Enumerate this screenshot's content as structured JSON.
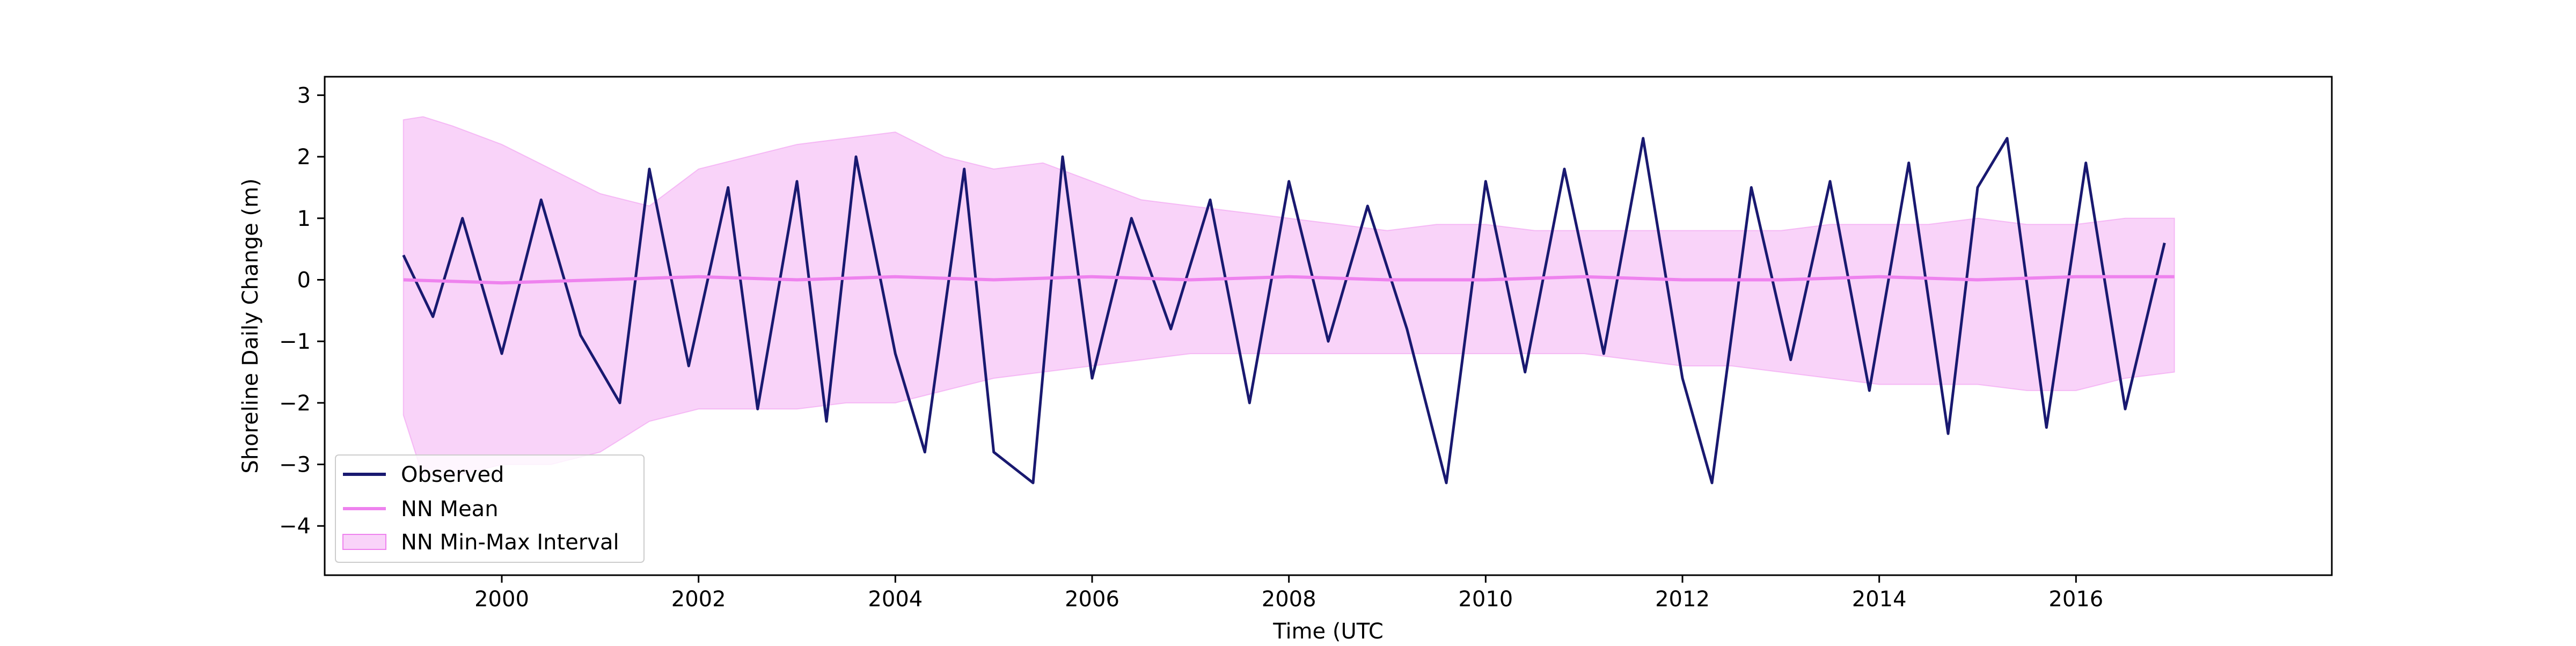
{
  "chart_data": {
    "type": "line",
    "xlabel": "Time (UTC",
    "ylabel": "Shoreline Daily Change (m)",
    "xlim": [
      1998.2,
      2018.6
    ],
    "ylim": [
      -4.8,
      3.3
    ],
    "x_ticks": [
      {
        "value": 2000,
        "label": "2000"
      },
      {
        "value": 2002,
        "label": "2002"
      },
      {
        "value": 2004,
        "label": "2004"
      },
      {
        "value": 2006,
        "label": "2006"
      },
      {
        "value": 2008,
        "label": "2008"
      },
      {
        "value": 2010,
        "label": "2010"
      },
      {
        "value": 2012,
        "label": "2012"
      },
      {
        "value": 2014,
        "label": "2014"
      },
      {
        "value": 2016,
        "label": "2016"
      }
    ],
    "y_ticks": [
      {
        "value": 3,
        "label": "3"
      },
      {
        "value": 2,
        "label": "2"
      },
      {
        "value": 1,
        "label": "1"
      },
      {
        "value": 0,
        "label": "0"
      },
      {
        "value": -1,
        "label": "−1"
      },
      {
        "value": -2,
        "label": "−2"
      },
      {
        "value": -3,
        "label": "−3"
      },
      {
        "value": -4,
        "label": "−4"
      }
    ],
    "grid": false,
    "legend": {
      "placement": "lower-left",
      "entries": [
        {
          "name": "Observed",
          "style": "line",
          "color": "#191970"
        },
        {
          "name": "NN Mean",
          "style": "line",
          "color": "#ee82ee"
        },
        {
          "name": "NN Min-Max Interval",
          "style": "patch",
          "color": "#ee82ee"
        }
      ]
    },
    "series": [
      {
        "name": "NN Min-Max Interval",
        "kind": "band",
        "color": "#ee82ee",
        "x": [
          1999.0,
          1999.2,
          1999.5,
          2000.0,
          2000.5,
          2001.0,
          2001.5,
          2002.0,
          2002.5,
          2003.0,
          2003.5,
          2004.0,
          2004.5,
          2005.0,
          2005.5,
          2006.0,
          2006.5,
          2007.0,
          2007.5,
          2008.0,
          2008.5,
          2009.0,
          2009.5,
          2010.0,
          2010.5,
          2011.0,
          2011.5,
          2012.0,
          2012.5,
          2013.0,
          2013.5,
          2014.0,
          2014.5,
          2015.0,
          2015.5,
          2016.0,
          2016.5,
          2017.0
        ],
        "upper": [
          2.6,
          2.65,
          2.5,
          2.2,
          1.8,
          1.4,
          1.2,
          1.8,
          2.0,
          2.2,
          2.3,
          2.4,
          2.0,
          1.8,
          1.9,
          1.6,
          1.3,
          1.2,
          1.1,
          1.0,
          0.9,
          0.8,
          0.9,
          0.9,
          0.8,
          0.8,
          0.8,
          0.8,
          0.8,
          0.8,
          0.9,
          0.9,
          0.9,
          1.0,
          0.9,
          0.9,
          1.0,
          1.0
        ],
        "lower": [
          -2.2,
          -3.2,
          -3.2,
          -3.0,
          -3.0,
          -2.8,
          -2.3,
          -2.1,
          -2.1,
          -2.1,
          -2.0,
          -2.0,
          -1.8,
          -1.6,
          -1.5,
          -1.4,
          -1.3,
          -1.2,
          -1.2,
          -1.2,
          -1.2,
          -1.2,
          -1.2,
          -1.2,
          -1.2,
          -1.2,
          -1.3,
          -1.4,
          -1.4,
          -1.5,
          -1.6,
          -1.7,
          -1.7,
          -1.7,
          -1.8,
          -1.8,
          -1.6,
          -1.5
        ]
      },
      {
        "name": "Observed",
        "kind": "line",
        "color": "#191970",
        "x": [
          1999.0,
          1999.3,
          1999.6,
          2000.0,
          2000.4,
          2000.8,
          2001.2,
          2001.5,
          2001.9,
          2002.3,
          2002.6,
          2003.0,
          2003.3,
          2003.6,
          2004.0,
          2004.3,
          2004.7,
          2005.0,
          2005.4,
          2005.7,
          2006.0,
          2006.4,
          2006.8,
          2007.2,
          2007.6,
          2008.0,
          2008.4,
          2008.8,
          2009.2,
          2009.6,
          2010.0,
          2010.4,
          2010.8,
          2011.2,
          2011.6,
          2012.0,
          2012.3,
          2012.7,
          2013.1,
          2013.5,
          2013.9,
          2014.3,
          2014.7,
          2015.0,
          2015.3,
          2015.7,
          2016.1,
          2016.5,
          2016.9
        ],
        "y": [
          0.4,
          -0.6,
          1.0,
          -1.2,
          1.3,
          -0.9,
          -2.0,
          1.8,
          -1.4,
          1.5,
          -2.1,
          1.6,
          -2.3,
          2.0,
          -1.2,
          -2.8,
          1.8,
          -2.8,
          -3.3,
          2.0,
          -1.6,
          1.0,
          -0.8,
          1.3,
          -2.0,
          1.6,
          -1.0,
          1.2,
          -0.8,
          -3.3,
          1.6,
          -1.5,
          1.8,
          -1.2,
          2.3,
          -1.6,
          -3.3,
          1.5,
          -1.3,
          1.6,
          -1.8,
          1.9,
          -2.5,
          1.5,
          2.3,
          -2.4,
          1.9,
          -2.1,
          0.6
        ]
      },
      {
        "name": "NN Mean",
        "kind": "line",
        "color": "#ee82ee",
        "x": [
          1999.0,
          2000.0,
          2001.0,
          2002.0,
          2003.0,
          2004.0,
          2005.0,
          2006.0,
          2007.0,
          2008.0,
          2009.0,
          2010.0,
          2011.0,
          2012.0,
          2013.0,
          2014.0,
          2015.0,
          2016.0,
          2017.0
        ],
        "y": [
          0.0,
          -0.05,
          0.0,
          0.05,
          0.0,
          0.05,
          0.0,
          0.05,
          0.0,
          0.05,
          0.0,
          0.0,
          0.05,
          0.0,
          0.0,
          0.05,
          0.0,
          0.05,
          0.05
        ]
      }
    ]
  }
}
